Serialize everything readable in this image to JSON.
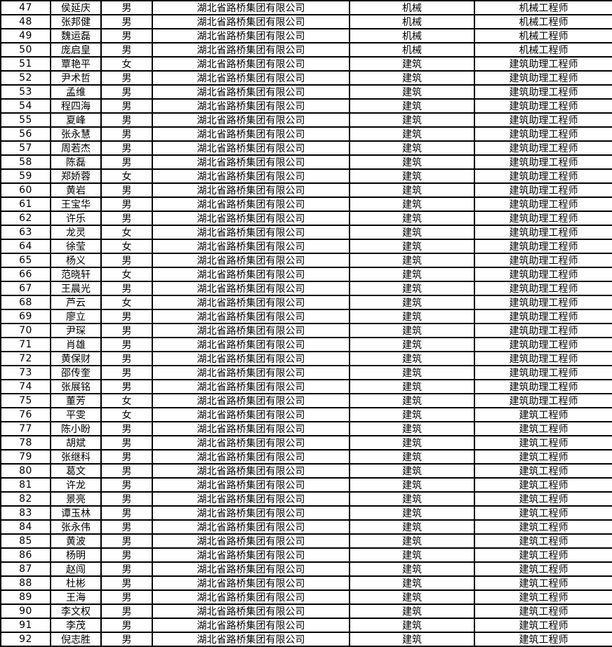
{
  "page": {
    "background_color": "#ffffff",
    "grid_border_color": "#000000",
    "text_color": "#000000"
  },
  "table": {
    "columns": [
      "seq",
      "name",
      "gender",
      "company",
      "category",
      "title"
    ],
    "rows": [
      [
        "47",
        "侯延庆",
        "男",
        "湖北省路桥集团有限公司",
        "机械",
        "机械工程师"
      ],
      [
        "48",
        "张邦健",
        "男",
        "湖北省路桥集团有限公司",
        "机械",
        "机械工程师"
      ],
      [
        "49",
        "魏运磊",
        "男",
        "湖北省路桥集团有限公司",
        "机械",
        "机械工程师"
      ],
      [
        "50",
        "庞启皇",
        "男",
        "湖北省路桥集团有限公司",
        "机械",
        "机械工程师"
      ],
      [
        "51",
        "覃艳平",
        "女",
        "湖北省路桥集团有限公司",
        "建筑",
        "建筑助理工程师"
      ],
      [
        "52",
        "尹术哲",
        "男",
        "湖北省路桥集团有限公司",
        "建筑",
        "建筑助理工程师"
      ],
      [
        "53",
        "孟维",
        "男",
        "湖北省路桥集团有限公司",
        "建筑",
        "建筑助理工程师"
      ],
      [
        "54",
        "程四海",
        "男",
        "湖北省路桥集团有限公司",
        "建筑",
        "建筑助理工程师"
      ],
      [
        "55",
        "夏峰",
        "男",
        "湖北省路桥集团有限公司",
        "建筑",
        "建筑助理工程师"
      ],
      [
        "56",
        "张永慧",
        "男",
        "湖北省路桥集团有限公司",
        "建筑",
        "建筑助理工程师"
      ],
      [
        "57",
        "周若杰",
        "男",
        "湖北省路桥集团有限公司",
        "建筑",
        "建筑助理工程师"
      ],
      [
        "58",
        "陈磊",
        "男",
        "湖北省路桥集团有限公司",
        "建筑",
        "建筑助理工程师"
      ],
      [
        "59",
        "郑娇蓉",
        "女",
        "湖北省路桥集团有限公司",
        "建筑",
        "建筑助理工程师"
      ],
      [
        "60",
        "黄岩",
        "男",
        "湖北省路桥集团有限公司",
        "建筑",
        "建筑助理工程师"
      ],
      [
        "61",
        "王宝华",
        "男",
        "湖北省路桥集团有限公司",
        "建筑",
        "建筑助理工程师"
      ],
      [
        "62",
        "许乐",
        "男",
        "湖北省路桥集团有限公司",
        "建筑",
        "建筑助理工程师"
      ],
      [
        "63",
        "龙灵",
        "女",
        "湖北省路桥集团有限公司",
        "建筑",
        "建筑助理工程师"
      ],
      [
        "64",
        "徐莹",
        "女",
        "湖北省路桥集团有限公司",
        "建筑",
        "建筑助理工程师"
      ],
      [
        "65",
        "杨义",
        "男",
        "湖北省路桥集团有限公司",
        "建筑",
        "建筑助理工程师"
      ],
      [
        "66",
        "范晓轩",
        "女",
        "湖北省路桥集团有限公司",
        "建筑",
        "建筑助理工程师"
      ],
      [
        "67",
        "王晨光",
        "男",
        "湖北省路桥集团有限公司",
        "建筑",
        "建筑助理工程师"
      ],
      [
        "68",
        "芦云",
        "女",
        "湖北省路桥集团有限公司",
        "建筑",
        "建筑助理工程师"
      ],
      [
        "69",
        "廖立",
        "男",
        "湖北省路桥集团有限公司",
        "建筑",
        "建筑助理工程师"
      ],
      [
        "70",
        "尹琛",
        "男",
        "湖北省路桥集团有限公司",
        "建筑",
        "建筑助理工程师"
      ],
      [
        "71",
        "肖雄",
        "男",
        "湖北省路桥集团有限公司",
        "建筑",
        "建筑助理工程师"
      ],
      [
        "72",
        "黄保财",
        "男",
        "湖北省路桥集团有限公司",
        "建筑",
        "建筑助理工程师"
      ],
      [
        "73",
        "邵传奎",
        "男",
        "湖北省路桥集团有限公司",
        "建筑",
        "建筑助理工程师"
      ],
      [
        "74",
        "张展铭",
        "男",
        "湖北省路桥集团有限公司",
        "建筑",
        "建筑助理工程师"
      ],
      [
        "75",
        "董芳",
        "女",
        "湖北省路桥集团有限公司",
        "建筑",
        "建筑助理工程师"
      ],
      [
        "76",
        "平雯",
        "女",
        "湖北省路桥集团有限公司",
        "建筑",
        "建筑工程师"
      ],
      [
        "77",
        "陈小盼",
        "男",
        "湖北省路桥集团有限公司",
        "建筑",
        "建筑工程师"
      ],
      [
        "78",
        "胡斌",
        "男",
        "湖北省路桥集团有限公司",
        "建筑",
        "建筑工程师"
      ],
      [
        "79",
        "张继科",
        "男",
        "湖北省路桥集团有限公司",
        "建筑",
        "建筑工程师"
      ],
      [
        "80",
        "葛文",
        "男",
        "湖北省路桥集团有限公司",
        "建筑",
        "建筑工程师"
      ],
      [
        "81",
        "许龙",
        "男",
        "湖北省路桥集团有限公司",
        "建筑",
        "建筑工程师"
      ],
      [
        "82",
        "景亮",
        "男",
        "湖北省路桥集团有限公司",
        "建筑",
        "建筑工程师"
      ],
      [
        "83",
        "谭玉林",
        "男",
        "湖北省路桥集团有限公司",
        "建筑",
        "建筑工程师"
      ],
      [
        "84",
        "张永伟",
        "男",
        "湖北省路桥集团有限公司",
        "建筑",
        "建筑工程师"
      ],
      [
        "85",
        "黄波",
        "男",
        "湖北省路桥集团有限公司",
        "建筑",
        "建筑工程师"
      ],
      [
        "86",
        "杨明",
        "男",
        "湖北省路桥集团有限公司",
        "建筑",
        "建筑工程师"
      ],
      [
        "87",
        "赵闯",
        "男",
        "湖北省路桥集团有限公司",
        "建筑",
        "建筑工程师"
      ],
      [
        "88",
        "杜彬",
        "男",
        "湖北省路桥集团有限公司",
        "建筑",
        "建筑工程师"
      ],
      [
        "89",
        "王海",
        "男",
        "湖北省路桥集团有限公司",
        "建筑",
        "建筑工程师"
      ],
      [
        "90",
        "李文权",
        "男",
        "湖北省路桥集团有限公司",
        "建筑",
        "建筑工程师"
      ],
      [
        "91",
        "李茂",
        "男",
        "湖北省路桥集团有限公司",
        "建筑",
        "建筑工程师"
      ],
      [
        "92",
        "倪志胜",
        "男",
        "湖北省路桥集团有限公司",
        "建筑",
        "建筑工程师"
      ]
    ]
  }
}
